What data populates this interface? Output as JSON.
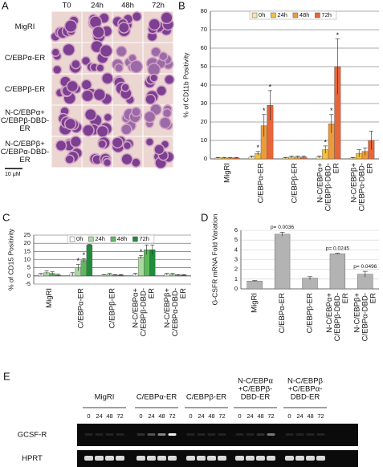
{
  "panel_a": {
    "label": "A",
    "columns": [
      "T0",
      "24h",
      "48h",
      "72h"
    ],
    "rows": [
      [
        "MigRI"
      ],
      [
        "C/EBPα-ER"
      ],
      [
        "C/EBPβ-ER"
      ],
      [
        "N-C/EBPα+",
        "C/EBPβ-DBD-",
        "ER"
      ],
      [
        "N-C/EBPβ+",
        "C/EBPα-DBD-",
        "ER"
      ]
    ],
    "scale": "10 μM"
  },
  "chart_data": [
    {
      "type": "bar",
      "label": "B",
      "y_label": "% of CD11b Positivity",
      "categories": [
        [
          "MigRI"
        ],
        [
          "C/EBPα-ER"
        ],
        [
          "C/EBPβ-ER"
        ],
        [
          "N-C/EBPα+",
          "C/EBPβ-DBD-",
          "ER"
        ],
        [
          "N-C/EBPβ+",
          "C/EBPα-DBD-",
          "ER"
        ]
      ],
      "series": [
        {
          "name": "0h",
          "color": "#fbe7a6",
          "values": [
            0.5,
            1,
            0.5,
            1,
            0.5
          ],
          "errors": [
            0.3,
            0.5,
            0.3,
            0.5,
            0.3
          ]
        },
        {
          "name": "24h",
          "color": "#f3c03f",
          "values": [
            0.5,
            3,
            1,
            5,
            3
          ],
          "errors": [
            0.3,
            1,
            0.5,
            2,
            2
          ]
        },
        {
          "name": "48h",
          "color": "#ee9a3a",
          "values": [
            0.5,
            18,
            1,
            19,
            4
          ],
          "errors": [
            0.3,
            6,
            0.5,
            5,
            2
          ]
        },
        {
          "name": "72h",
          "color": "#e8653a",
          "values": [
            0.5,
            29,
            1,
            50,
            10
          ],
          "errors": [
            0.3,
            8,
            0.5,
            15,
            5
          ]
        }
      ],
      "ylim": [
        0,
        80
      ],
      "yticks": [
        0,
        10,
        20,
        30,
        40,
        50,
        60,
        70,
        80
      ],
      "grid": true,
      "legend": "top",
      "annotations": [
        {
          "text": "*",
          "category": 1,
          "series": 1
        },
        {
          "text": "*",
          "category": 1,
          "series": 2
        },
        {
          "text": "*",
          "category": 1,
          "series": 3
        },
        {
          "text": "*",
          "category": 3,
          "series": 1
        },
        {
          "text": "*",
          "category": 3,
          "series": 2
        },
        {
          "text": "*",
          "category": 3,
          "series": 3
        }
      ]
    },
    {
      "type": "bar",
      "label": "C",
      "y_label": "% of CD15 Positivity",
      "categories": [
        [
          "MigRI"
        ],
        [
          "C/EBPα-ER"
        ],
        [
          "C/EBPβ-ER"
        ],
        [
          "N-C/EBPα+",
          "C/EBPβ-DBD-",
          "ER"
        ],
        [
          "N-C/EBPβ+",
          "C/EBPα-DBD-",
          "ER"
        ]
      ],
      "series": [
        {
          "name": "0h",
          "color": "#ffffff",
          "values": [
            1,
            1,
            0.5,
            1,
            1
          ],
          "errors": [
            0.5,
            1,
            0.3,
            0.5,
            0.5
          ]
        },
        {
          "name": "24h",
          "color": "#a9d9a0",
          "values": [
            2,
            5,
            1,
            11.5,
            1
          ],
          "errors": [
            1,
            2,
            0.5,
            1,
            0.5
          ]
        },
        {
          "name": "48h",
          "color": "#5db85c",
          "values": [
            1.5,
            9.5,
            0.5,
            16,
            0.5
          ],
          "errors": [
            1,
            1,
            0.3,
            3,
            0.3
          ]
        },
        {
          "name": "72h",
          "color": "#1f8b3b",
          "values": [
            0.5,
            19,
            0.5,
            16,
            0.5
          ],
          "errors": [
            0.5,
            0.3,
            0.3,
            3,
            0.3
          ]
        }
      ],
      "ylim": [
        -5,
        25
      ],
      "yticks": [
        -5,
        0,
        5,
        10,
        15,
        20,
        25
      ],
      "grid": true,
      "legend": "top",
      "annotations": [
        {
          "text": "*",
          "category": 1,
          "series": 1
        },
        {
          "text": "*",
          "category": 1,
          "series": 2
        },
        {
          "text": "*",
          "category": 1,
          "series": 3
        },
        {
          "text": "*",
          "category": 3,
          "series": 1
        },
        {
          "text": "*",
          "category": 3,
          "series": 2
        },
        {
          "text": "*",
          "category": 3,
          "series": 3
        }
      ]
    },
    {
      "type": "bar",
      "label": "D",
      "y_label": "G-CSFR mRNA Fold Variation",
      "categories": [
        [
          "MigRI"
        ],
        [
          "C/EBPα-ER"
        ],
        [
          "C/EBPβ-ER"
        ],
        [
          "N-C/EBPα+",
          "C/EBPβ-DBD-",
          "ER"
        ],
        [
          "N-C/EBPβ+",
          "C/EBPα-DBD-",
          "ER"
        ]
      ],
      "values": [
        0.8,
        5.6,
        1.1,
        3.6,
        1.5
      ],
      "errors": [
        0.05,
        0.2,
        0.15,
        0.05,
        0.3
      ],
      "color": "#b3b3b3",
      "ylim": [
        0,
        6
      ],
      "yticks": [
        0,
        1,
        2,
        3,
        4,
        5,
        6
      ],
      "grid": true,
      "annotations": [
        {
          "text": "p= 0.0036",
          "category": 1
        },
        {
          "text": "p= 0.0245",
          "category": 3
        },
        {
          "text": "p= 0.0496",
          "category": 4
        }
      ]
    }
  ],
  "panel_e": {
    "label": "E",
    "groups": [
      [
        "MigRI"
      ],
      [
        "C/EBPα-ER"
      ],
      [
        "C/EBPβ-ER"
      ],
      [
        "N-C/EBPα",
        "+C/EBPβ-",
        "DBD-ER"
      ],
      [
        "N-C/EBPβ",
        "+C/EBPα-",
        "DBD-ER"
      ]
    ],
    "lanes": [
      "0",
      "24",
      "48",
      "72"
    ],
    "rows": [
      "GCSF-R",
      "HPRT"
    ]
  }
}
